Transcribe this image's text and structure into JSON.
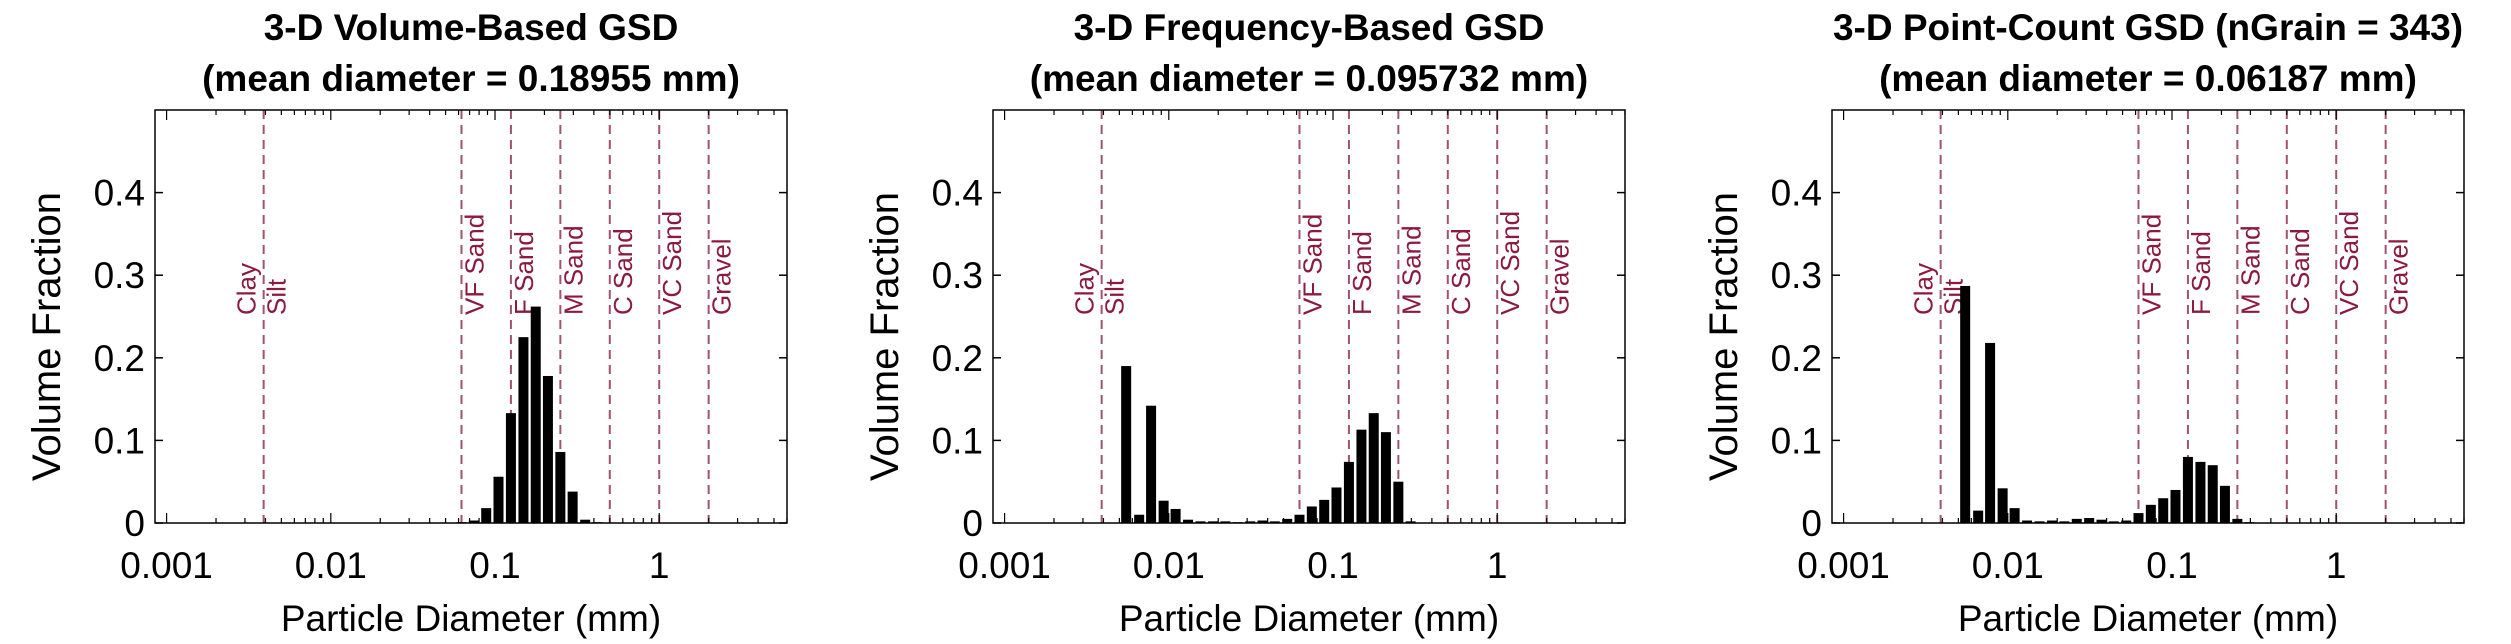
{
  "colors": {
    "bar": "#000000",
    "boundary": "#a0526e",
    "boundary_label": "#8b1a3e",
    "axis": "#000000",
    "text": "#000000"
  },
  "chart_data": [
    {
      "type": "bar",
      "title": "3-D Volume-Based GSD",
      "subtitle": "(mean diameter = 0.18955 mm)",
      "xlabel": "Particle Diameter (mm)",
      "ylabel": "Volume Fraction",
      "xscale": "log",
      "xlim": [
        0.00085,
        6
      ],
      "ylim": [
        0,
        0.5
      ],
      "xticks": [
        0.001,
        0.01,
        0.1,
        1
      ],
      "xticklabels": [
        "0.001",
        "0.01",
        "0.1",
        "1"
      ],
      "yticks": [
        0,
        0.1,
        0.2,
        0.3,
        0.4
      ],
      "yticklabels": [
        "0",
        "0.1",
        "0.2",
        "0.3",
        "0.4"
      ],
      "grid": false,
      "boundaries": [
        {
          "x": 0.0039,
          "labels": [
            "Clay",
            "Silt"
          ]
        },
        {
          "x": 0.0625,
          "labels": [
            "VF Sand"
          ]
        },
        {
          "x": 0.125,
          "labels": [
            "F Sand"
          ]
        },
        {
          "x": 0.25,
          "labels": [
            "M Sand"
          ]
        },
        {
          "x": 0.5,
          "labels": [
            "C Sand"
          ]
        },
        {
          "x": 1,
          "labels": [
            "VC Sand"
          ]
        },
        {
          "x": 2,
          "labels": [
            "Gravel"
          ]
        }
      ],
      "x": [
        0.0625,
        0.0743,
        0.0884,
        0.105,
        0.125,
        0.149,
        0.177,
        0.21,
        0.25,
        0.297,
        0.354,
        0.42
      ],
      "values": [
        0.001,
        0.003,
        0.018,
        0.056,
        0.133,
        0.225,
        0.262,
        0.178,
        0.086,
        0.038,
        0.004,
        0.001
      ]
    },
    {
      "type": "bar",
      "title": "3-D Frequency-Based GSD",
      "subtitle": "(mean diameter = 0.095732 mm)",
      "xlabel": "Particle Diameter (mm)",
      "ylabel": "Volume Fraction",
      "xscale": "log",
      "xlim": [
        0.00085,
        6
      ],
      "ylim": [
        0,
        0.5
      ],
      "xticks": [
        0.001,
        0.01,
        0.1,
        1
      ],
      "xticklabels": [
        "0.001",
        "0.01",
        "0.1",
        "1"
      ],
      "yticks": [
        0,
        0.1,
        0.2,
        0.3,
        0.4
      ],
      "yticklabels": [
        "0",
        "0.1",
        "0.2",
        "0.3",
        "0.4"
      ],
      "grid": false,
      "boundaries": [
        {
          "x": 0.0039,
          "labels": [
            "Clay",
            "Silt"
          ]
        },
        {
          "x": 0.0625,
          "labels": [
            "VF Sand"
          ]
        },
        {
          "x": 0.125,
          "labels": [
            "F Sand"
          ]
        },
        {
          "x": 0.25,
          "labels": [
            "M Sand"
          ]
        },
        {
          "x": 0.5,
          "labels": [
            "C Sand"
          ]
        },
        {
          "x": 1,
          "labels": [
            "VC Sand"
          ]
        },
        {
          "x": 2,
          "labels": [
            "Gravel"
          ]
        }
      ],
      "x": [
        0.0055,
        0.0066,
        0.0078,
        0.0093,
        0.011,
        0.0131,
        0.0156,
        0.0186,
        0.0221,
        0.0263,
        0.0313,
        0.0372,
        0.0442,
        0.0526,
        0.0625,
        0.0743,
        0.0884,
        0.105,
        0.125,
        0.149,
        0.177,
        0.21,
        0.25,
        0.297
      ],
      "values": [
        0.19,
        0.01,
        0.142,
        0.027,
        0.017,
        0.004,
        0.002,
        0.002,
        0.002,
        0.001,
        0.002,
        0.003,
        0.002,
        0.005,
        0.01,
        0.02,
        0.028,
        0.043,
        0.074,
        0.113,
        0.133,
        0.11,
        0.05,
        0.002
      ]
    },
    {
      "type": "bar",
      "title": "3-D Point-Count GSD (nGrain = 343)",
      "subtitle": "(mean diameter = 0.06187 mm)",
      "xlabel": "Particle Diameter (mm)",
      "ylabel": "Volume Fraction",
      "xscale": "log",
      "xlim": [
        0.00085,
        6
      ],
      "ylim": [
        0,
        0.5
      ],
      "xticks": [
        0.001,
        0.01,
        0.1,
        1
      ],
      "xticklabels": [
        "0.001",
        "0.01",
        "0.1",
        "1"
      ],
      "yticks": [
        0,
        0.1,
        0.2,
        0.3,
        0.4
      ],
      "yticklabels": [
        "0",
        "0.1",
        "0.2",
        "0.3",
        "0.4"
      ],
      "grid": false,
      "boundaries": [
        {
          "x": 0.0039,
          "labels": [
            "Clay",
            "Silt"
          ]
        },
        {
          "x": 0.0625,
          "labels": [
            "VF Sand"
          ]
        },
        {
          "x": 0.125,
          "labels": [
            "F Sand"
          ]
        },
        {
          "x": 0.25,
          "labels": [
            "M Sand"
          ]
        },
        {
          "x": 0.5,
          "labels": [
            "C Sand"
          ]
        },
        {
          "x": 1,
          "labels": [
            "VC Sand"
          ]
        },
        {
          "x": 2,
          "labels": [
            "Gravel"
          ]
        }
      ],
      "x": [
        0.0055,
        0.0066,
        0.0078,
        0.0093,
        0.011,
        0.0131,
        0.0156,
        0.0186,
        0.0221,
        0.0263,
        0.0313,
        0.0372,
        0.0442,
        0.0526,
        0.0625,
        0.0743,
        0.0884,
        0.105,
        0.125,
        0.149,
        0.177,
        0.21,
        0.25,
        0.297
      ],
      "values": [
        0.287,
        0.015,
        0.218,
        0.042,
        0.018,
        0.003,
        0.002,
        0.003,
        0.002,
        0.005,
        0.006,
        0.004,
        0.002,
        0.003,
        0.012,
        0.022,
        0.03,
        0.04,
        0.08,
        0.074,
        0.07,
        0.045,
        0.005,
        0.001
      ]
    }
  ]
}
